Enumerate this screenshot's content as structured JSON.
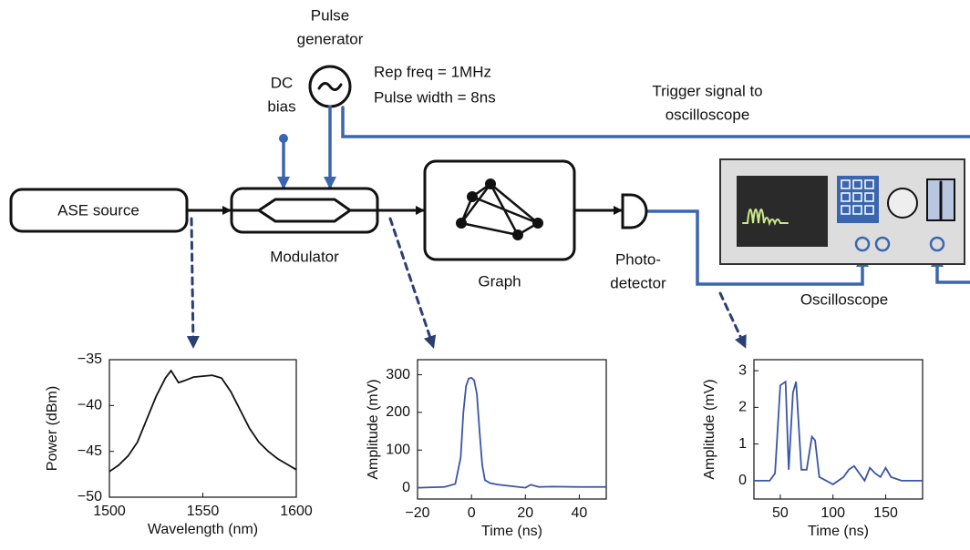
{
  "diagram": {
    "labels": {
      "pulse_generator": [
        "Pulse",
        "generator"
      ],
      "rep_freq": "Rep freq = 1MHz",
      "pulse_width": "Pulse width = 8ns",
      "dc_bias": [
        "DC",
        "bias"
      ],
      "trigger": [
        "Trigger signal to",
        "oscilloscope"
      ],
      "ase_source": "ASE source",
      "modulator": "Modulator",
      "graph": "Graph",
      "photodetector": [
        "Photo-",
        "detector"
      ],
      "oscilloscope": "Oscilloscope"
    }
  },
  "chart_data": [
    {
      "type": "line",
      "xlabel": "Wavelength (nm)",
      "ylabel": "Power (dBm)",
      "x": [
        1500,
        1505,
        1510,
        1515,
        1520,
        1525,
        1530,
        1533,
        1537,
        1540,
        1545,
        1550,
        1555,
        1560,
        1565,
        1570,
        1575,
        1580,
        1585,
        1590,
        1595,
        1600
      ],
      "values": [
        -47.2,
        -46.5,
        -45.5,
        -44,
        -41.5,
        -39,
        -37,
        -36.2,
        -37.5,
        -37.3,
        -36.9,
        -36.8,
        -36.7,
        -37,
        -38.5,
        -40.5,
        -42.5,
        -44,
        -45,
        -45.8,
        -46.4,
        -47
      ],
      "color": "#111111",
      "xlim": [
        1500,
        1600
      ],
      "ylim": [
        -50,
        -35
      ],
      "xticks": [
        1500,
        1550,
        1600
      ],
      "yticks": [
        {
          "value": -50,
          "label": "−50"
        },
        {
          "value": -45,
          "label": "−45"
        },
        {
          "value": -40,
          "label": "−40"
        },
        {
          "value": -35,
          "label": "−35"
        }
      ]
    },
    {
      "type": "line",
      "xlabel": "Time (ns)",
      "ylabel": "Amplitude (mV)",
      "x": [
        -20,
        -10,
        -6,
        -4,
        -3,
        -2,
        -1,
        0,
        1,
        2,
        3,
        4,
        5,
        7,
        10,
        20,
        22,
        25,
        30,
        40,
        50
      ],
      "values": [
        0,
        2,
        10,
        80,
        200,
        270,
        290,
        292,
        285,
        250,
        150,
        60,
        20,
        12,
        8,
        0,
        8,
        2,
        3,
        2,
        2
      ],
      "color": "#3a55a8",
      "xlim": [
        -20,
        50
      ],
      "ylim": [
        -30,
        340
      ],
      "xticks": [
        {
          "value": -20,
          "label": "−20"
        },
        0,
        20,
        40
      ],
      "yticks": [
        0,
        100,
        200,
        300
      ]
    },
    {
      "type": "line",
      "xlabel": "Time (ns)",
      "ylabel": "Amplitude (mV)",
      "x": [
        25,
        40,
        45,
        50,
        55,
        58,
        62,
        65,
        70,
        75,
        80,
        83,
        87,
        100,
        110,
        115,
        120,
        125,
        130,
        135,
        140,
        145,
        150,
        155,
        165,
        185
      ],
      "values": [
        0,
        0,
        0.2,
        2.6,
        2.7,
        0.3,
        2.4,
        2.7,
        0.3,
        0.3,
        1.2,
        1.1,
        0.1,
        -0.1,
        0.1,
        0.3,
        0.4,
        0.2,
        0,
        0.35,
        0.2,
        0.1,
        0.35,
        0.1,
        0,
        0
      ],
      "color": "#3a55a8",
      "xlim": [
        25,
        185
      ],
      "ylim": [
        -0.5,
        3.3
      ],
      "xticks": [
        50,
        100,
        150
      ],
      "yticks": [
        0,
        1,
        2,
        3
      ]
    }
  ]
}
